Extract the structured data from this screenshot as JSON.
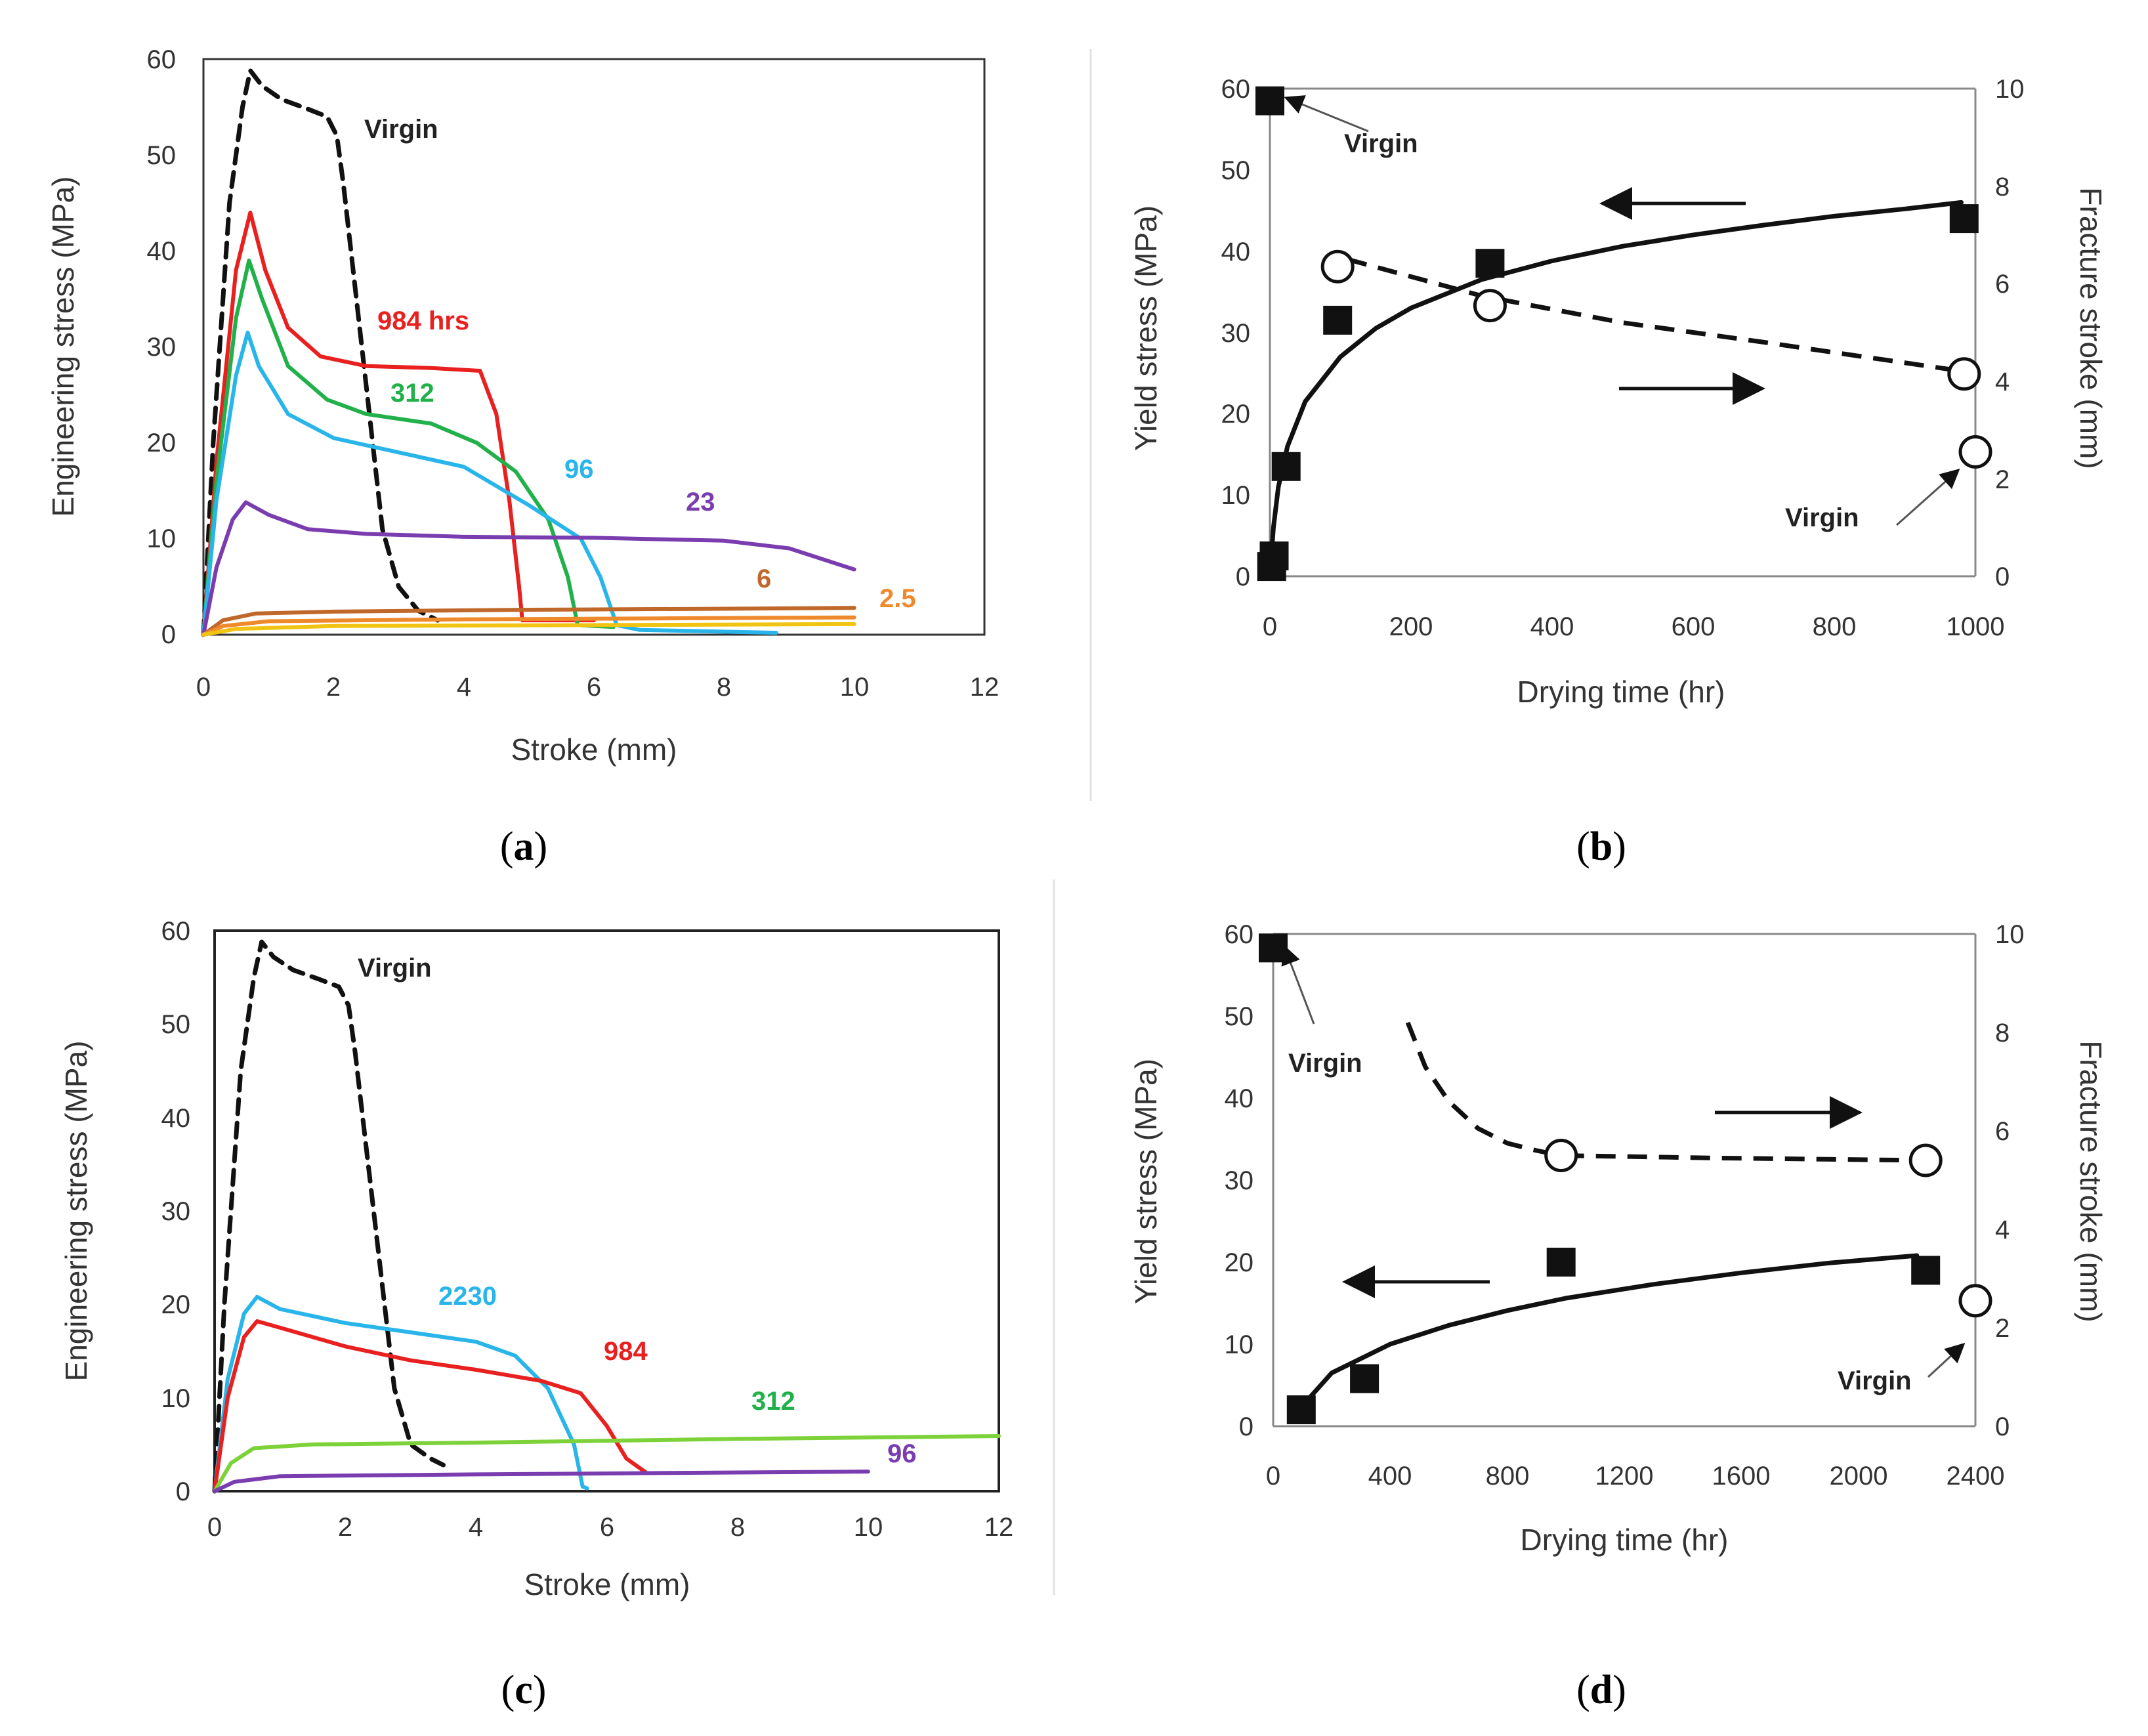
{
  "figure": {
    "panels": [
      {
        "id": "a",
        "label": "a"
      },
      {
        "id": "b",
        "label": "b"
      },
      {
        "id": "c",
        "label": "c"
      },
      {
        "id": "d",
        "label": "d"
      }
    ]
  },
  "chart_data": [
    {
      "id": "a",
      "type": "line",
      "xlabel": "Stroke (mm)",
      "ylabel": "Engineering stress (MPa)",
      "xlim": [
        0,
        12
      ],
      "ylim": [
        0,
        60
      ],
      "xticks": [
        "0",
        "2",
        "4",
        "6",
        "8",
        "10",
        "12"
      ],
      "yticks": [
        "0",
        "10",
        "20",
        "30",
        "40",
        "50",
        "60"
      ],
      "series": [
        {
          "name": "Virgin",
          "color": "#111111",
          "dashed": true,
          "points": [
            [
              0,
              0
            ],
            [
              0.15,
              20
            ],
            [
              0.4,
              45
            ],
            [
              0.6,
              55
            ],
            [
              0.72,
              58.8
            ],
            [
              0.9,
              57.2
            ],
            [
              1.2,
              55.8
            ],
            [
              1.6,
              54.8
            ],
            [
              1.9,
              54
            ],
            [
              2.05,
              52
            ],
            [
              2.15,
              47
            ],
            [
              2.3,
              38
            ],
            [
              2.45,
              29
            ],
            [
              2.6,
              20
            ],
            [
              2.75,
              11
            ],
            [
              3.0,
              5
            ],
            [
              3.3,
              2.5
            ],
            [
              3.6,
              1.5
            ]
          ]
        },
        {
          "name": "984 hrs",
          "color": "#e8201f",
          "points": [
            [
              0,
              0
            ],
            [
              0.2,
              18
            ],
            [
              0.5,
              38
            ],
            [
              0.72,
              44
            ],
            [
              0.95,
              38
            ],
            [
              1.3,
              32
            ],
            [
              1.8,
              29
            ],
            [
              2.5,
              28
            ],
            [
              3.5,
              27.8
            ],
            [
              4.25,
              27.5
            ],
            [
              4.5,
              23
            ],
            [
              4.7,
              14
            ],
            [
              4.85,
              5
            ],
            [
              4.9,
              1.5
            ],
            [
              6,
              1.5
            ]
          ]
        },
        {
          "name": "312",
          "color": "#22b04b",
          "points": [
            [
              0,
              0
            ],
            [
              0.2,
              16
            ],
            [
              0.5,
              33
            ],
            [
              0.7,
              39
            ],
            [
              0.9,
              35
            ],
            [
              1.3,
              28
            ],
            [
              1.9,
              24.5
            ],
            [
              2.5,
              23
            ],
            [
              3.5,
              22
            ],
            [
              4.2,
              20
            ],
            [
              4.8,
              17
            ],
            [
              5.3,
              12
            ],
            [
              5.6,
              6
            ],
            [
              5.75,
              1
            ],
            [
              6.3,
              0.8
            ]
          ]
        },
        {
          "name": "96",
          "color": "#29b5ea",
          "points": [
            [
              0,
              0
            ],
            [
              0.2,
              14
            ],
            [
              0.5,
              27
            ],
            [
              0.68,
              31.5
            ],
            [
              0.85,
              28
            ],
            [
              1.3,
              23
            ],
            [
              2,
              20.5
            ],
            [
              3,
              19
            ],
            [
              4,
              17.5
            ],
            [
              5,
              13.5
            ],
            [
              5.8,
              10
            ],
            [
              6.1,
              6
            ],
            [
              6.35,
              1
            ],
            [
              6.7,
              0.5
            ],
            [
              8.8,
              0.2
            ]
          ]
        },
        {
          "name": "23",
          "color": "#7a3db0",
          "points": [
            [
              0,
              0
            ],
            [
              0.2,
              7
            ],
            [
              0.45,
              12
            ],
            [
              0.65,
              13.8
            ],
            [
              1.0,
              12.5
            ],
            [
              1.6,
              11
            ],
            [
              2.5,
              10.5
            ],
            [
              4,
              10.2
            ],
            [
              6,
              10.1
            ],
            [
              8,
              9.8
            ],
            [
              9,
              9
            ],
            [
              10,
              6.8
            ]
          ]
        },
        {
          "name": "6",
          "color": "#c0682a",
          "points": [
            [
              0,
              0
            ],
            [
              0.3,
              1.5
            ],
            [
              0.8,
              2.2
            ],
            [
              2,
              2.4
            ],
            [
              5,
              2.6
            ],
            [
              8,
              2.7
            ],
            [
              10,
              2.8
            ]
          ]
        },
        {
          "name": "2.5",
          "color": "#ef8a2c",
          "points": [
            [
              0,
              0
            ],
            [
              0.3,
              0.9
            ],
            [
              1,
              1.4
            ],
            [
              4,
              1.6
            ],
            [
              7,
              1.7
            ],
            [
              10,
              1.8
            ]
          ]
        },
        {
          "name": "",
          "color": "#f1c414",
          "points": [
            [
              0,
              0
            ],
            [
              0.5,
              0.6
            ],
            [
              2,
              0.9
            ],
            [
              6,
              1.0
            ],
            [
              10,
              1.1
            ]
          ]
        }
      ],
      "annotations": [
        {
          "text": "Virgin",
          "color": "#222222"
        },
        {
          "text": "984 hrs",
          "color": "#e8201f"
        },
        {
          "text": "312",
          "color": "#22b04b"
        },
        {
          "text": "96",
          "color": "#29b5ea"
        },
        {
          "text": "23",
          "color": "#7a3db0"
        },
        {
          "text": "6",
          "color": "#c0682a"
        },
        {
          "text": "2.5",
          "color": "#ef8a2c"
        }
      ]
    },
    {
      "id": "b",
      "type": "scatter",
      "xlabel": "Drying time (hr)",
      "ylabel": "Yield stress (MPa)",
      "y2label": "Fracture stroke (mm)",
      "xlim": [
        0,
        1000
      ],
      "ylim": [
        0,
        60
      ],
      "y2lim": [
        0,
        10
      ],
      "xticks": [
        "0",
        "200",
        "400",
        "600",
        "800",
        "1000"
      ],
      "yticks": [
        "0",
        "10",
        "20",
        "30",
        "40",
        "50",
        "60"
      ],
      "y2ticks": [
        "0",
        "2",
        "4",
        "6",
        "8",
        "10"
      ],
      "yield_points": [
        [
          0,
          58.5
        ],
        [
          2.5,
          1.2
        ],
        [
          6,
          2.5
        ],
        [
          23,
          13.5
        ],
        [
          96,
          31.5
        ],
        [
          312,
          38.5
        ],
        [
          984,
          44
        ]
      ],
      "fracture_points": [
        [
          96,
          6.35
        ],
        [
          312,
          5.55
        ],
        [
          984,
          4.15
        ],
        [
          1000,
          2.55
        ]
      ],
      "yield_fit": [
        [
          0,
          0
        ],
        [
          5,
          6
        ],
        [
          12,
          11
        ],
        [
          25,
          16
        ],
        [
          50,
          21.5
        ],
        [
          100,
          27
        ],
        [
          150,
          30.5
        ],
        [
          200,
          33
        ],
        [
          300,
          36.5
        ],
        [
          400,
          38.8
        ],
        [
          500,
          40.6
        ],
        [
          600,
          42
        ],
        [
          700,
          43.2
        ],
        [
          800,
          44.3
        ],
        [
          900,
          45.2
        ],
        [
          980,
          46
        ]
      ],
      "fracture_fit": [
        [
          110,
          6.5
        ],
        [
          300,
          5.75
        ],
        [
          500,
          5.2
        ],
        [
          700,
          4.8
        ],
        [
          984,
          4.2
        ]
      ],
      "annotations": [
        {
          "text": "Virgin",
          "color": "#222222"
        },
        {
          "text": "Virgin",
          "color": "#222222"
        }
      ]
    },
    {
      "id": "c",
      "type": "line",
      "xlabel": "Stroke (mm)",
      "ylabel": "Engineering stress (MPa)",
      "xlim": [
        0,
        12
      ],
      "ylim": [
        0,
        60
      ],
      "xticks": [
        "0",
        "2",
        "4",
        "6",
        "8",
        "10",
        "12"
      ],
      "yticks": [
        "0",
        "10",
        "20",
        "30",
        "40",
        "50",
        "60"
      ],
      "series": [
        {
          "name": "Virgin",
          "color": "#111111",
          "dashed": true,
          "points": [
            [
              0,
              0
            ],
            [
              0.15,
              20
            ],
            [
              0.4,
              45
            ],
            [
              0.6,
              55
            ],
            [
              0.72,
              58.8
            ],
            [
              0.9,
              57.2
            ],
            [
              1.2,
              55.8
            ],
            [
              1.6,
              54.8
            ],
            [
              1.9,
              54
            ],
            [
              2.05,
              52
            ],
            [
              2.15,
              47
            ],
            [
              2.3,
              38
            ],
            [
              2.45,
              29
            ],
            [
              2.6,
              20
            ],
            [
              2.75,
              11
            ],
            [
              3.0,
              5
            ],
            [
              3.3,
              3.5
            ],
            [
              3.5,
              2.8
            ]
          ]
        },
        {
          "name": "2230",
          "color": "#29b5ea",
          "points": [
            [
              0,
              0
            ],
            [
              0.2,
              12
            ],
            [
              0.45,
              19
            ],
            [
              0.65,
              20.8
            ],
            [
              1.0,
              19.5
            ],
            [
              2,
              18
            ],
            [
              3,
              17
            ],
            [
              4,
              16
            ],
            [
              4.6,
              14.5
            ],
            [
              5.1,
              11
            ],
            [
              5.5,
              5
            ],
            [
              5.63,
              0.5
            ],
            [
              5.7,
              0.3
            ]
          ]
        },
        {
          "name": "984",
          "color": "#e8201f",
          "points": [
            [
              0,
              0
            ],
            [
              0.2,
              10
            ],
            [
              0.45,
              16.5
            ],
            [
              0.65,
              18.2
            ],
            [
              1.0,
              17.5
            ],
            [
              2,
              15.5
            ],
            [
              3,
              14
            ],
            [
              4,
              13
            ],
            [
              5,
              11.8
            ],
            [
              5.6,
              10.5
            ],
            [
              6.0,
              7
            ],
            [
              6.3,
              3.5
            ],
            [
              6.6,
              2
            ]
          ]
        },
        {
          "name": "312",
          "color": "#7dd23a",
          "points": [
            [
              0,
              0
            ],
            [
              0.25,
              3
            ],
            [
              0.6,
              4.6
            ],
            [
              1.5,
              5
            ],
            [
              4,
              5.2
            ],
            [
              8,
              5.6
            ],
            [
              12,
              5.9
            ]
          ]
        },
        {
          "name": "96",
          "color": "#7a3db0",
          "points": [
            [
              0,
              0
            ],
            [
              0.3,
              1
            ],
            [
              1,
              1.6
            ],
            [
              4,
              1.8
            ],
            [
              8,
              2
            ],
            [
              10,
              2.1
            ]
          ]
        }
      ],
      "annotations": [
        {
          "text": "Virgin",
          "color": "#222222"
        },
        {
          "text": "2230",
          "color": "#29b5ea"
        },
        {
          "text": "984",
          "color": "#e8201f"
        },
        {
          "text": "312",
          "color": "#22b04b"
        },
        {
          "text": "96",
          "color": "#7a3db0"
        }
      ]
    },
    {
      "id": "d",
      "type": "scatter",
      "xlabel": "Drying time (hr)",
      "ylabel": "Yield stress (MPa)",
      "y2label": "Fracture stroke (mm)",
      "xlim": [
        0,
        2400
      ],
      "ylim": [
        0,
        60
      ],
      "y2lim": [
        0,
        10
      ],
      "xticks": [
        "0",
        "400",
        "800",
        "1200",
        "1600",
        "2000",
        "2400"
      ],
      "yticks": [
        "0",
        "10",
        "20",
        "30",
        "40",
        "50",
        "60"
      ],
      "y2ticks": [
        "0",
        "2",
        "4",
        "6",
        "8",
        "10"
      ],
      "yield_points": [
        [
          0,
          58.3
        ],
        [
          96,
          2
        ],
        [
          312,
          5.8
        ],
        [
          984,
          20
        ],
        [
          2230,
          19
        ]
      ],
      "fracture_points": [
        [
          984,
          5.5
        ],
        [
          2230,
          5.4
        ],
        [
          2400,
          2.55
        ]
      ],
      "yield_fit": [
        [
          100,
          2.5
        ],
        [
          200,
          6.5
        ],
        [
          400,
          10
        ],
        [
          600,
          12.3
        ],
        [
          800,
          14.1
        ],
        [
          1000,
          15.6
        ],
        [
          1300,
          17.3
        ],
        [
          1600,
          18.7
        ],
        [
          1900,
          19.9
        ],
        [
          2200,
          20.8
        ]
      ],
      "fracture_fit": [
        [
          460,
          8.2
        ],
        [
          520,
          7.3
        ],
        [
          600,
          6.6
        ],
        [
          700,
          6.05
        ],
        [
          800,
          5.75
        ],
        [
          900,
          5.6
        ],
        [
          984,
          5.5
        ],
        [
          1500,
          5.45
        ],
        [
          2230,
          5.4
        ]
      ],
      "annotations": [
        {
          "text": "Virgin",
          "color": "#222222"
        },
        {
          "text": "Virgin",
          "color": "#222222"
        }
      ]
    }
  ]
}
